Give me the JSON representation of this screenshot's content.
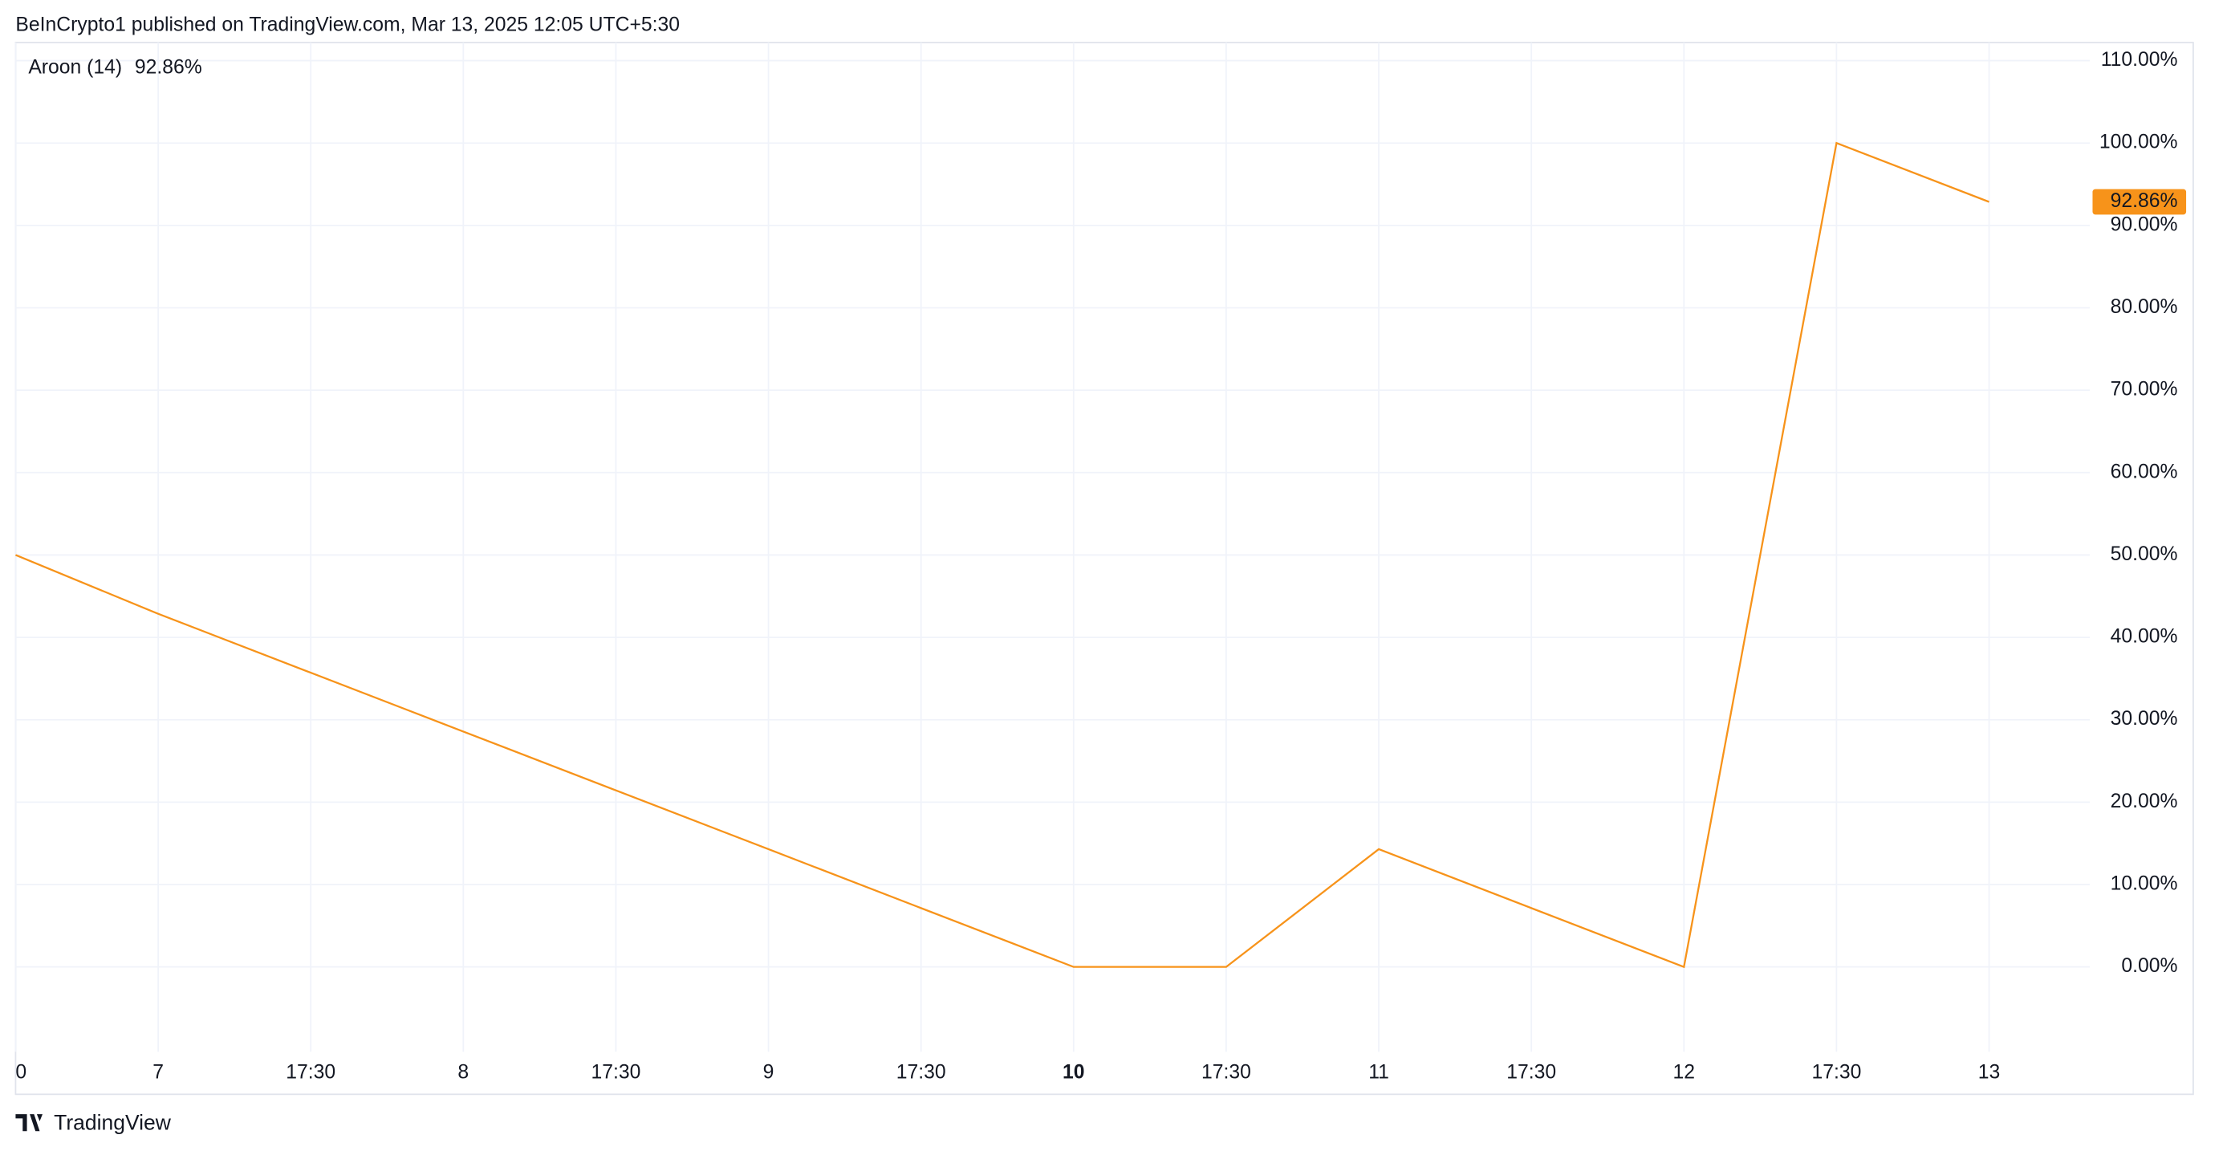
{
  "header": {
    "text": "BeInCrypto1 published on TradingView.com, Mar 13, 2025 12:05 UTC+5:30"
  },
  "footer": {
    "brand": "TradingView"
  },
  "chart_data": {
    "type": "line",
    "categories": [
      "0",
      "7",
      "17:30",
      "8",
      "17:30",
      "9",
      "17:30",
      "10",
      "17:30",
      "11",
      "17:30",
      "12",
      "17:30",
      "13"
    ],
    "series": [
      {
        "name": "Aroon (14)",
        "color": "#f7931a",
        "values": [
          50,
          42.86,
          35.71,
          28.57,
          21.43,
          14.29,
          7.14,
          0,
          0,
          14.29,
          7.14,
          0,
          100,
          92.86
        ],
        "last_value_label": "92.86%"
      }
    ],
    "ylim": [
      -10.3,
      112.2
    ],
    "yticks": [
      {
        "value": 0,
        "label": "0.00%"
      },
      {
        "value": 10,
        "label": "10.00%"
      },
      {
        "value": 20,
        "label": "20.00%"
      },
      {
        "value": 30,
        "label": "30.00%"
      },
      {
        "value": 40,
        "label": "40.00%"
      },
      {
        "value": 50,
        "label": "50.00%"
      },
      {
        "value": 60,
        "label": "60.00%"
      },
      {
        "value": 70,
        "label": "70.00%"
      },
      {
        "value": 80,
        "label": "80.00%"
      },
      {
        "value": 90,
        "label": "90.00%"
      },
      {
        "value": 100,
        "label": "100.00%"
      },
      {
        "value": 110,
        "label": "110.00%"
      }
    ],
    "grid": true
  }
}
